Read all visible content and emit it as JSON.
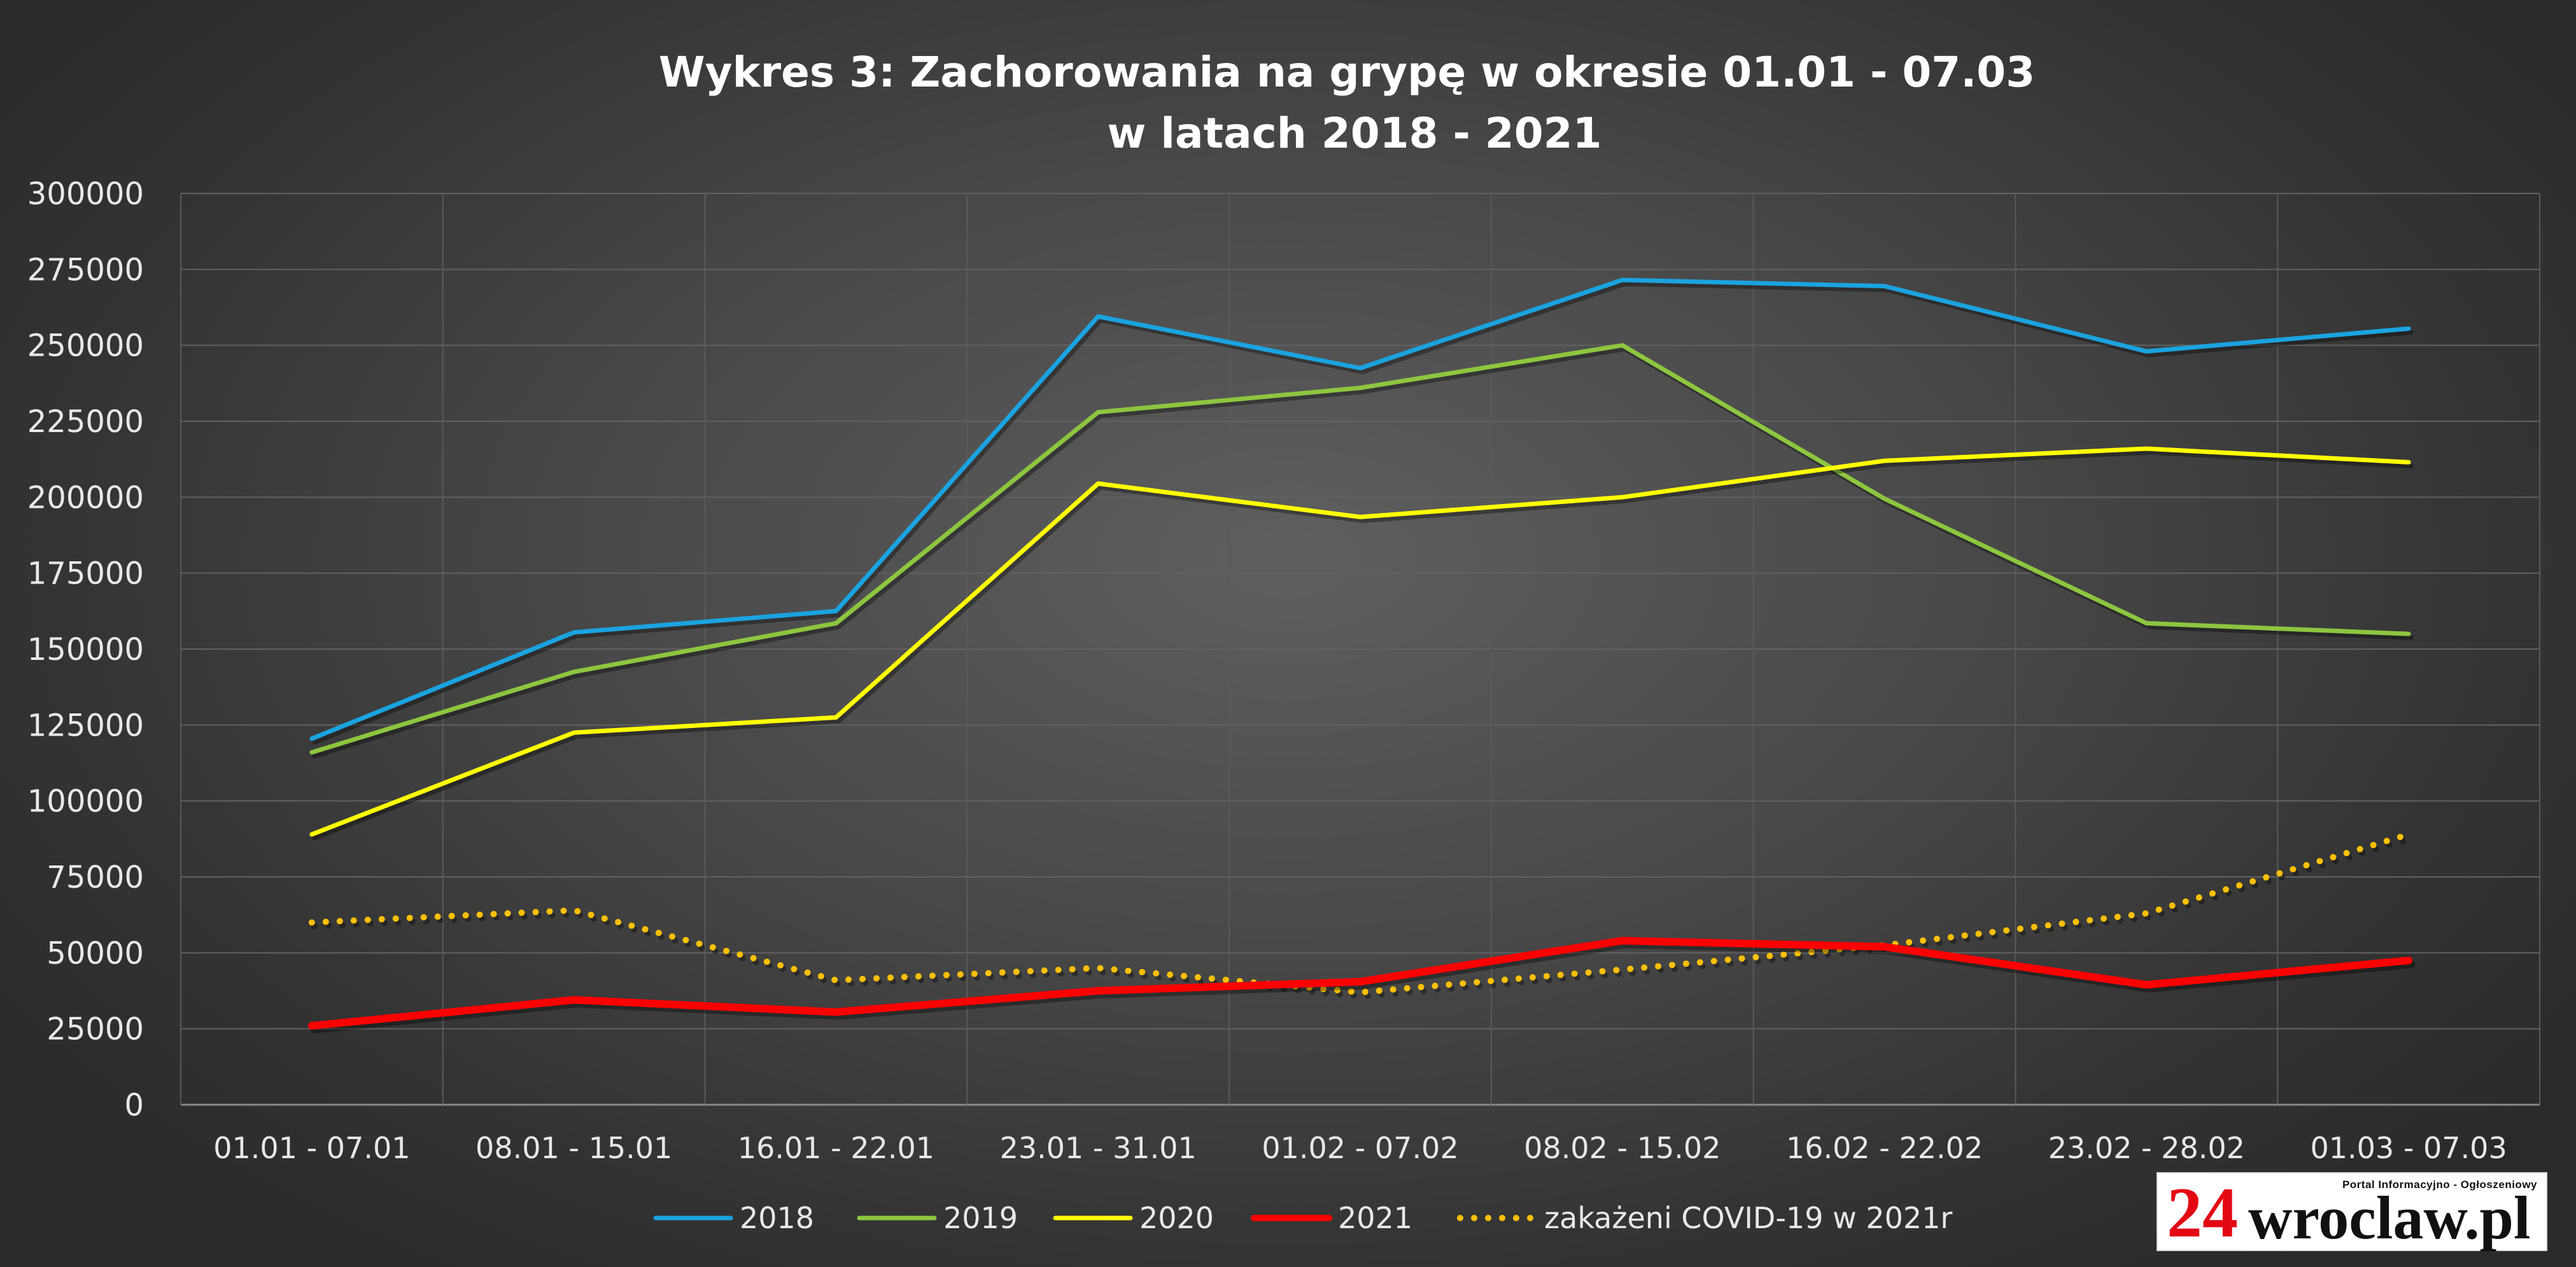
{
  "chart_data": {
    "type": "line",
    "title": [
      "Wykres 3: Zachorowania na grypę w okresie 01.01 - 07.03",
      "w latach 2018 - 2021"
    ],
    "xlabel": "",
    "ylabel": "",
    "ylim": [
      0,
      300000
    ],
    "yticks": [
      "0",
      "25000",
      "50000",
      "75000",
      "100000",
      "125000",
      "150000",
      "175000",
      "200000",
      "225000",
      "250000",
      "275000",
      "300000"
    ],
    "categories": [
      "01.01 - 07.01",
      "08.01 - 15.01",
      "16.01 - 22.01",
      "23.01 - 31.01",
      "01.02 - 07.02",
      "08.02 - 15.02",
      "16.02 - 22.02",
      "23.02 - 28.02",
      "01.03 - 07.03"
    ],
    "grid": true,
    "legend_position": "bottom",
    "series": [
      {
        "name": "2018",
        "color": "#1aa3e0",
        "style": "solid",
        "values": [
          120500,
          155500,
          162500,
          259500,
          242500,
          271500,
          269500,
          248000,
          255500
        ]
      },
      {
        "name": "2019",
        "color": "#8cc63f",
        "style": "solid",
        "values": [
          116000,
          142500,
          158500,
          228000,
          236000,
          250000,
          199500,
          158500,
          155000
        ]
      },
      {
        "name": "2020",
        "color": "#ffff00",
        "style": "solid",
        "values": [
          89000,
          122500,
          127500,
          204500,
          193500,
          200000,
          212000,
          216000,
          211500
        ]
      },
      {
        "name": "2021",
        "color": "#ff0000",
        "style": "solid-thick",
        "values": [
          26000,
          34500,
          30500,
          37500,
          40500,
          54000,
          52000,
          39500,
          47500
        ]
      },
      {
        "name": "zakażeni COVID-19 w 2021r",
        "color": "#ffc000",
        "style": "dotted",
        "values": [
          60000,
          64000,
          41000,
          45000,
          37000,
          44500,
          52500,
          63000,
          89000
        ]
      }
    ]
  },
  "logo": {
    "number": "24",
    "name": "wroclaw.pl",
    "tagline": "Portal Informacyjno - Ogłoszeniowy"
  }
}
